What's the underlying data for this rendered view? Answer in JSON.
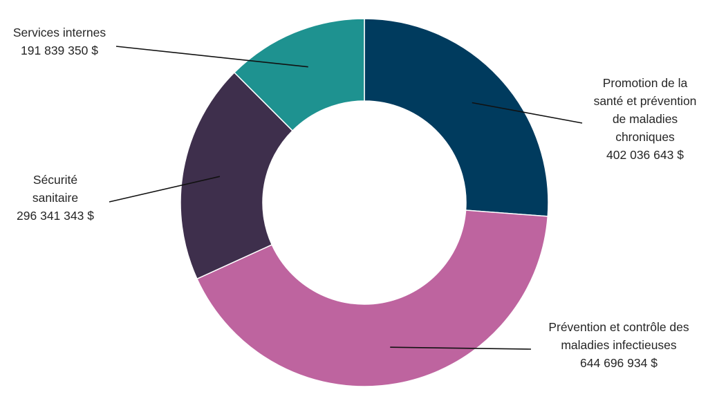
{
  "chart_data": {
    "type": "pie",
    "variant": "donut",
    "title": "",
    "start_angle_deg": 0,
    "direction": "clockwise",
    "legend": "none",
    "slices": [
      {
        "label_lines": [
          "Promotion de la",
          "santé et prévention",
          "de maladies",
          "chroniques"
        ],
        "value_label": "402 036 643 $",
        "value": 402036643,
        "color": "#003b5e"
      },
      {
        "label_lines": [
          "Prévention et contrôle des",
          "maladies infectieuses"
        ],
        "value_label": "644 696 934 $",
        "value": 644696934,
        "color": "#be649f"
      },
      {
        "label_lines": [
          "Sécurité",
          "sanitaire"
        ],
        "value_label": "296 341 343 $",
        "value": 296341343,
        "color": "#3e2f4c"
      },
      {
        "label_lines": [
          "Services internes"
        ],
        "value_label": "191 839 350 $",
        "value": 191839350,
        "color": "#1e9290"
      }
    ]
  }
}
